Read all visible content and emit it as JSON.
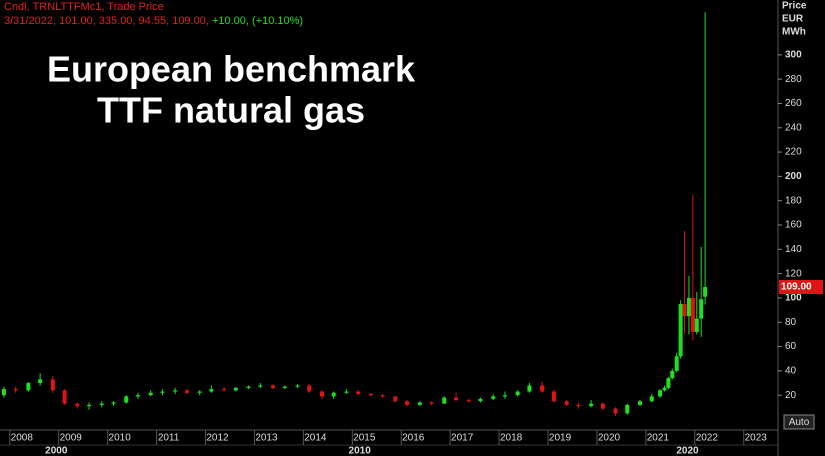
{
  "chart_data": {
    "type": "candlestick",
    "header": "Cndl, TRNLTTFMc1, Trade Price",
    "quote": [
      "3/31/2022, 101.00, 335.00, 94.55, 109.00,",
      "+10.00, (+10.10%)"
    ],
    "title": [
      "European benchmark",
      "TTF natural gas"
    ],
    "y_axis_label": [
      "Price",
      "EUR",
      "MWh"
    ],
    "auto_button": "Auto",
    "up_color": "#1ee01e",
    "down_color": "#e01414",
    "xlim": [
      2007.8,
      2023.7
    ],
    "xticks": [
      2008,
      2009,
      2010,
      2011,
      2012,
      2013,
      2014,
      2015,
      2016,
      2017,
      2018,
      2019,
      2020,
      2021,
      2022,
      2023
    ],
    "decade_ticks": [
      {
        "value": 2008.95,
        "label": "2000"
      },
      {
        "value": 2015.15,
        "label": "2010"
      },
      {
        "value": 2021.85,
        "label": "2020"
      }
    ],
    "ylim": [
      -7,
      341
    ],
    "yticks": [
      20,
      40,
      60,
      80,
      100,
      120,
      140,
      160,
      180,
      200,
      220,
      240,
      260,
      280,
      300
    ],
    "major_ytick_step": 100,
    "last_price": {
      "value": 109,
      "label": "109.00"
    },
    "x": [
      2007.88,
      2008.12,
      2008.38,
      2008.62,
      2008.88,
      2009.12,
      2009.38,
      2009.62,
      2009.88,
      2010.12,
      2010.38,
      2010.62,
      2010.88,
      2011.12,
      2011.38,
      2011.62,
      2011.88,
      2012.12,
      2012.38,
      2012.62,
      2012.88,
      2013.12,
      2013.38,
      2013.62,
      2013.88,
      2014.12,
      2014.38,
      2014.62,
      2014.88,
      2015.12,
      2015.38,
      2015.62,
      2015.88,
      2016.12,
      2016.38,
      2016.62,
      2016.88,
      2017.12,
      2017.38,
      2017.62,
      2017.88,
      2018.12,
      2018.38,
      2018.62,
      2018.88,
      2019.12,
      2019.38,
      2019.62,
      2019.88,
      2020.12,
      2020.38,
      2020.62,
      2020.88,
      2021.12,
      2021.29,
      2021.38,
      2021.46,
      2021.54,
      2021.63,
      2021.71,
      2021.79,
      2021.88,
      2021.96,
      2022.04,
      2022.13,
      2022.21
    ],
    "open": [
      20,
      25,
      24,
      30,
      33,
      24,
      13,
      11,
      12,
      13,
      14,
      19,
      20,
      22,
      23,
      24,
      22,
      23,
      25,
      24,
      26,
      27,
      28,
      26,
      27,
      28,
      23,
      19,
      22,
      23,
      21,
      20,
      19,
      15,
      12,
      14,
      13,
      18,
      16,
      15,
      17,
      19,
      20,
      23,
      28,
      23,
      15,
      12,
      11,
      13,
      9,
      5,
      12,
      15,
      19,
      24,
      26,
      34,
      40,
      52,
      95,
      85,
      100,
      72,
      83,
      101
    ],
    "high": [
      27,
      27,
      31,
      38,
      36,
      25,
      14,
      14,
      15,
      15,
      20,
      22,
      24,
      25,
      26,
      25,
      24,
      28,
      27,
      27,
      28,
      30,
      29,
      28,
      29,
      29,
      24,
      23,
      25,
      24,
      22,
      21,
      19,
      16,
      15,
      15,
      19,
      22,
      17,
      18,
      21,
      23,
      24,
      30,
      31,
      24,
      16,
      14,
      16,
      14,
      10,
      13,
      16,
      21,
      25,
      28,
      35,
      42,
      55,
      98,
      155,
      118,
      185,
      105,
      142,
      335
    ],
    "low": [
      18,
      22,
      23,
      28,
      22,
      12,
      9,
      8,
      10,
      11,
      13,
      17,
      19,
      20,
      21,
      21,
      20,
      22,
      23,
      23,
      25,
      26,
      25,
      25,
      26,
      22,
      17,
      17,
      21,
      20,
      19,
      18,
      14,
      11,
      11,
      12,
      13,
      15,
      14,
      14,
      16,
      17,
      19,
      22,
      22,
      14,
      11,
      9,
      10,
      8,
      3,
      4,
      11,
      14,
      18,
      23,
      25,
      33,
      39,
      50,
      70,
      70,
      65,
      70,
      68,
      94.55
    ],
    "close": [
      25,
      24,
      30,
      33,
      24,
      13,
      11,
      12,
      13,
      14,
      19,
      20,
      22,
      23,
      24,
      22,
      23,
      25,
      24,
      26,
      27,
      28,
      26,
      27,
      28,
      23,
      19,
      22,
      23,
      21,
      20,
      19,
      15,
      12,
      14,
      13,
      18,
      16,
      15,
      17,
      19,
      20,
      23,
      28,
      23,
      15,
      12,
      11,
      13,
      9,
      5,
      12,
      15,
      19,
      24,
      26,
      34,
      40,
      52,
      95,
      85,
      100,
      72,
      83,
      99,
      109
    ]
  }
}
